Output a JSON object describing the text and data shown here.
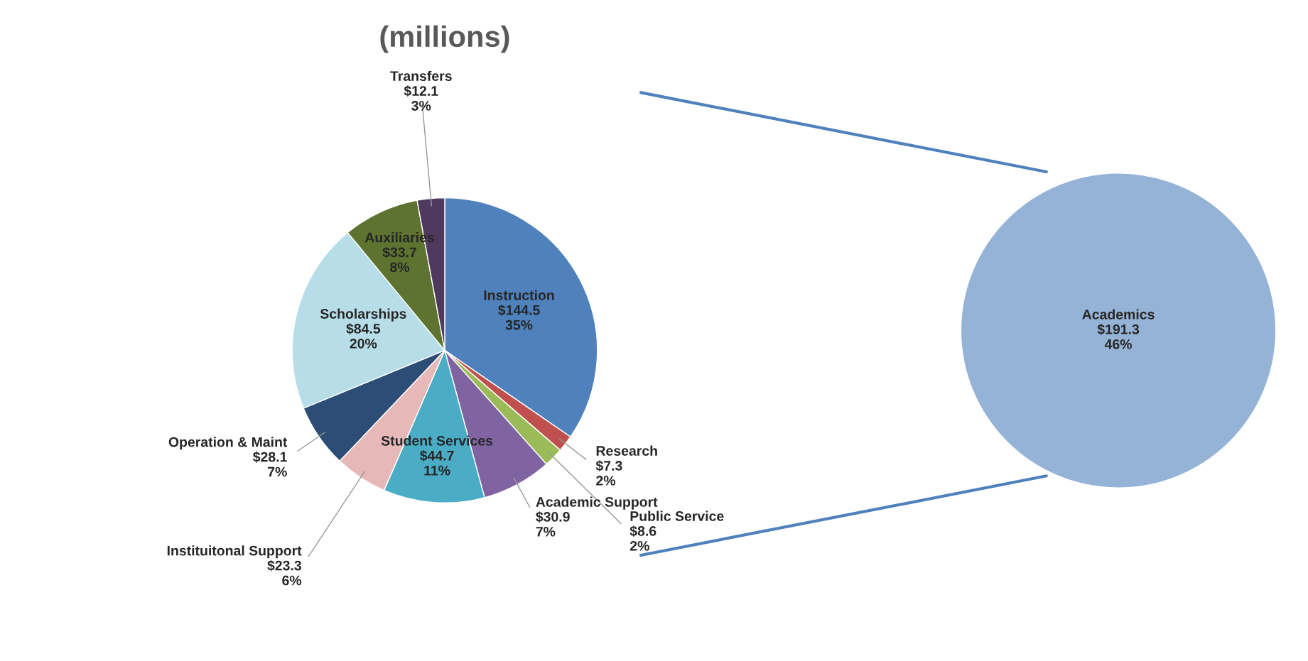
{
  "chart_data": [
    {
      "type": "pie",
      "title": "(millions)",
      "categories": [
        "Instruction",
        "Research",
        "Public Service",
        "Academic Support",
        "Student Services",
        "Instituitonal Support",
        "Operation & Maint",
        "Scholarships",
        "Auxiliaries",
        "Transfers"
      ],
      "values": [
        144.5,
        7.3,
        8.6,
        30.9,
        44.7,
        23.3,
        28.1,
        84.5,
        33.7,
        12.1
      ],
      "colors": [
        "#4f81bd",
        "#c0504d",
        "#9bbb59",
        "#8064a2",
        "#4bacc6",
        "#e6b9b8",
        "#2c4d75",
        "#b7dee8",
        "#5e7330",
        "#4f3a5e"
      ],
      "value_labels": [
        "$144.5\n35%",
        "$7.3\n2%",
        "$8.6\n2%",
        "$30.9\n7%",
        "$44.7\n11%",
        "$23.3\n6%",
        "$28.1\n7%",
        "$84.5\n20%",
        "$33.7\n8%",
        "$12.1\n3%"
      ]
    },
    {
      "type": "pie",
      "categories": [
        "Academics"
      ],
      "values": [
        191.3
      ],
      "colors": [
        "#95b3d7"
      ],
      "value_labels": [
        "$191.3\n46%"
      ]
    }
  ]
}
